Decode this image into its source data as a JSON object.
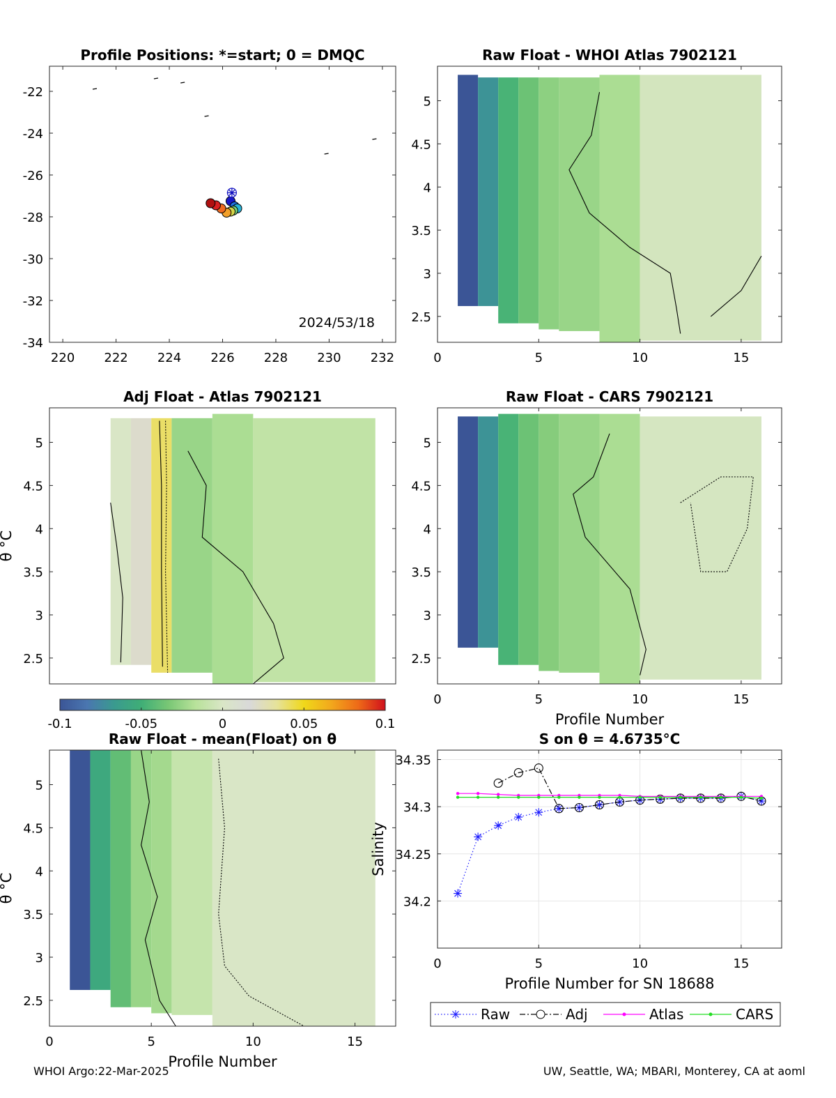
{
  "footer": {
    "left": "WHOI Argo:22-Mar-2025",
    "right": "UW, Seattle, WA; MBARI, Monterey, CA at aoml"
  },
  "colorbar": {
    "ticks": [
      "-0.1",
      "-0.05",
      "0",
      "0.05",
      "0.1"
    ],
    "range": [
      -0.1,
      0.1
    ],
    "stops": [
      "#3b5596",
      "#4a76b0",
      "#3a9a8f",
      "#3fae76",
      "#79c775",
      "#b8e29a",
      "#d9e6c6",
      "#d9d9d9",
      "#e6e29a",
      "#f0d81a",
      "#f2a81c",
      "#ee6a18",
      "#d0101c"
    ]
  },
  "chart_data": [
    {
      "type": "scatter",
      "title": "Profile Positions: *=start; 0 = DMQC",
      "annotation": "2024/53/18",
      "xlim": [
        219.5,
        232.5
      ],
      "ylim": [
        -34,
        -20.8
      ],
      "xticks": [
        "220",
        "222",
        "224",
        "226",
        "228",
        "230",
        "232"
      ],
      "yticks": [
        "-22",
        "-24",
        "-26",
        "-28",
        "-30",
        "-32",
        "-34"
      ],
      "start_marker": {
        "x": 226.35,
        "y": -26.85
      },
      "positions": [
        {
          "x": 226.3,
          "y": -27.25,
          "color": "#1818c8"
        },
        {
          "x": 226.45,
          "y": -27.5,
          "color": "#1e6ee0"
        },
        {
          "x": 226.55,
          "y": -27.6,
          "color": "#28b4d8"
        },
        {
          "x": 226.4,
          "y": -27.7,
          "color": "#7ad67a"
        },
        {
          "x": 226.3,
          "y": -27.75,
          "color": "#d6d64a"
        },
        {
          "x": 226.15,
          "y": -27.8,
          "color": "#f2a02a"
        },
        {
          "x": 225.95,
          "y": -27.6,
          "color": "#f06a22"
        },
        {
          "x": 225.75,
          "y": -27.45,
          "color": "#d82020"
        },
        {
          "x": 225.55,
          "y": -27.35,
          "color": "#b01010"
        }
      ]
    },
    {
      "type": "heatmap",
      "title": "Raw Float - WHOI Atlas  7902121",
      "xlim": [
        0,
        17
      ],
      "ylim": [
        2.2,
        5.4
      ],
      "xticks": [
        "0",
        "5",
        "10",
        "15"
      ],
      "yticks": [
        "5",
        "4.5",
        "4",
        "3.5",
        "3",
        "2.5"
      ],
      "xlabel": "",
      "ylabel": "",
      "columns": [
        {
          "x0": 1,
          "x1": 2,
          "top": 5.3,
          "bottom": 2.62,
          "value": -0.1
        },
        {
          "x0": 2,
          "x1": 3,
          "top": 5.27,
          "bottom": 2.62,
          "value": -0.07
        },
        {
          "x0": 3,
          "x1": 4,
          "top": 5.27,
          "bottom": 2.42,
          "value": -0.047
        },
        {
          "x0": 4,
          "x1": 5,
          "top": 5.27,
          "bottom": 2.42,
          "value": -0.037
        },
        {
          "x0": 5,
          "x1": 6,
          "top": 5.27,
          "bottom": 2.35,
          "value": -0.028
        },
        {
          "x0": 6,
          "x1": 8,
          "top": 5.27,
          "bottom": 2.33,
          "value": -0.025
        },
        {
          "x0": 8,
          "x1": 10,
          "top": 5.3,
          "bottom": 2.2,
          "value": -0.02
        },
        {
          "x0": 10,
          "x1": 16,
          "top": 5.3,
          "bottom": 2.22,
          "value": -0.003
        }
      ]
    },
    {
      "type": "heatmap",
      "title": "Adj Float - Atlas  7902121",
      "xlim": [
        0,
        17
      ],
      "ylim": [
        2.2,
        5.4
      ],
      "yticks": [
        "5",
        "4.5",
        "4",
        "3.5",
        "3",
        "2.5"
      ],
      "ylabel": "θ °C",
      "columns": [
        {
          "x0": 3,
          "x1": 4,
          "top": 5.28,
          "bottom": 2.42,
          "value": 0.0
        },
        {
          "x0": 4,
          "x1": 5,
          "top": 5.28,
          "bottom": 2.42,
          "value": 0.02
        },
        {
          "x0": 5,
          "x1": 6,
          "top": 5.28,
          "bottom": 2.33,
          "value": 0.04
        },
        {
          "x0": 6,
          "x1": 8,
          "top": 5.28,
          "bottom": 2.33,
          "value": -0.025
        },
        {
          "x0": 8,
          "x1": 10,
          "top": 5.33,
          "bottom": 2.2,
          "value": -0.02
        },
        {
          "x0": 10,
          "x1": 16,
          "top": 5.28,
          "bottom": 2.22,
          "value": -0.012
        }
      ]
    },
    {
      "type": "heatmap",
      "title": "Raw Float - CARS  7902121",
      "xlim": [
        0,
        17
      ],
      "ylim": [
        2.2,
        5.4
      ],
      "xticks": [
        "0",
        "5",
        "10",
        "15"
      ],
      "yticks": [
        "5",
        "4.5",
        "4",
        "3.5",
        "3",
        "2.5"
      ],
      "xlabel": "Profile Number",
      "columns": [
        {
          "x0": 1,
          "x1": 2,
          "top": 5.3,
          "bottom": 2.62,
          "value": -0.1
        },
        {
          "x0": 2,
          "x1": 3,
          "top": 5.3,
          "bottom": 2.62,
          "value": -0.07
        },
        {
          "x0": 3,
          "x1": 4,
          "top": 5.33,
          "bottom": 2.42,
          "value": -0.047
        },
        {
          "x0": 4,
          "x1": 5,
          "top": 5.33,
          "bottom": 2.42,
          "value": -0.037
        },
        {
          "x0": 5,
          "x1": 6,
          "top": 5.33,
          "bottom": 2.35,
          "value": -0.03
        },
        {
          "x0": 6,
          "x1": 8,
          "top": 5.33,
          "bottom": 2.33,
          "value": -0.025
        },
        {
          "x0": 8,
          "x1": 10,
          "top": 5.33,
          "bottom": 2.2,
          "value": -0.02
        },
        {
          "x0": 10,
          "x1": 16,
          "top": 5.3,
          "bottom": 2.25,
          "value": -0.002
        }
      ]
    },
    {
      "type": "heatmap",
      "title": "Raw Float - mean(Float) on θ",
      "xlim": [
        0,
        17
      ],
      "ylim": [
        2.2,
        5.4
      ],
      "xticks": [
        "0",
        "5",
        "10",
        "15"
      ],
      "yticks": [
        "5",
        "4.5",
        "4",
        "3.5",
        "3",
        "2.5"
      ],
      "xlabel": "Profile Number",
      "ylabel": "θ °C",
      "columns": [
        {
          "x0": 1,
          "x1": 2,
          "top": 5.4,
          "bottom": 2.62,
          "value": -0.1
        },
        {
          "x0": 2,
          "x1": 3,
          "top": 5.4,
          "bottom": 2.62,
          "value": -0.055
        },
        {
          "x0": 3,
          "x1": 4,
          "top": 5.4,
          "bottom": 2.42,
          "value": -0.04
        },
        {
          "x0": 4,
          "x1": 5,
          "top": 5.4,
          "bottom": 2.42,
          "value": -0.025
        },
        {
          "x0": 5,
          "x1": 6,
          "top": 5.4,
          "bottom": 2.35,
          "value": -0.022
        },
        {
          "x0": 6,
          "x1": 8,
          "top": 5.4,
          "bottom": 2.33,
          "value": -0.01
        },
        {
          "x0": 8,
          "x1": 16,
          "top": 5.4,
          "bottom": 2.2,
          "value": 0.0
        }
      ]
    },
    {
      "type": "line",
      "title": "S on θ = 4.6735°C",
      "xlabel": "Profile Number for SN 18688",
      "ylabel": "Salinity",
      "xlim": [
        0,
        17
      ],
      "ylim": [
        34.15,
        34.36
      ],
      "xticks": [
        "0",
        "5",
        "10",
        "15"
      ],
      "yticks": [
        "34.35",
        "34.3",
        "34.25",
        "34.2"
      ],
      "grid": true,
      "legend_position": "bottom",
      "series": [
        {
          "name": "Raw",
          "color": "#1a1aff",
          "marker": "star",
          "dash": "dotted",
          "x": [
            1,
            2,
            3,
            4,
            5,
            6,
            7,
            8,
            9,
            10,
            11,
            12,
            13,
            14,
            15,
            16
          ],
          "y": [
            34.208,
            34.268,
            34.28,
            34.289,
            34.294,
            34.298,
            34.299,
            34.302,
            34.305,
            34.307,
            34.308,
            34.309,
            34.309,
            34.309,
            34.311,
            34.306
          ]
        },
        {
          "name": "Adj",
          "color": "#000000",
          "marker": "circle",
          "dash": "dashdot",
          "x": [
            3,
            4,
            5,
            6,
            7,
            8,
            9,
            10,
            11,
            12,
            13,
            14,
            15,
            16
          ],
          "y": [
            34.325,
            34.336,
            34.341,
            34.298,
            34.299,
            34.302,
            34.305,
            34.307,
            34.308,
            34.309,
            34.309,
            34.309,
            34.311,
            34.306
          ]
        },
        {
          "name": "Atlas",
          "color": "#ff00ff",
          "marker": "dot",
          "dash": "solid",
          "x": [
            1,
            2,
            3,
            4,
            5,
            6,
            7,
            8,
            9,
            10,
            11,
            12,
            13,
            14,
            15,
            16
          ],
          "y": [
            34.314,
            34.314,
            34.313,
            34.312,
            34.312,
            34.312,
            34.312,
            34.312,
            34.312,
            34.311,
            34.311,
            34.311,
            34.311,
            34.311,
            34.311,
            34.311
          ]
        },
        {
          "name": "CARS",
          "color": "#22dd22",
          "marker": "dot",
          "dash": "solid",
          "x": [
            1,
            2,
            3,
            4,
            5,
            6,
            7,
            8,
            9,
            10,
            11,
            12,
            13,
            14,
            15,
            16
          ],
          "y": [
            34.31,
            34.31,
            34.31,
            34.31,
            34.31,
            34.31,
            34.31,
            34.31,
            34.31,
            34.31,
            34.31,
            34.31,
            34.31,
            34.31,
            34.31,
            34.309
          ]
        }
      ]
    }
  ]
}
